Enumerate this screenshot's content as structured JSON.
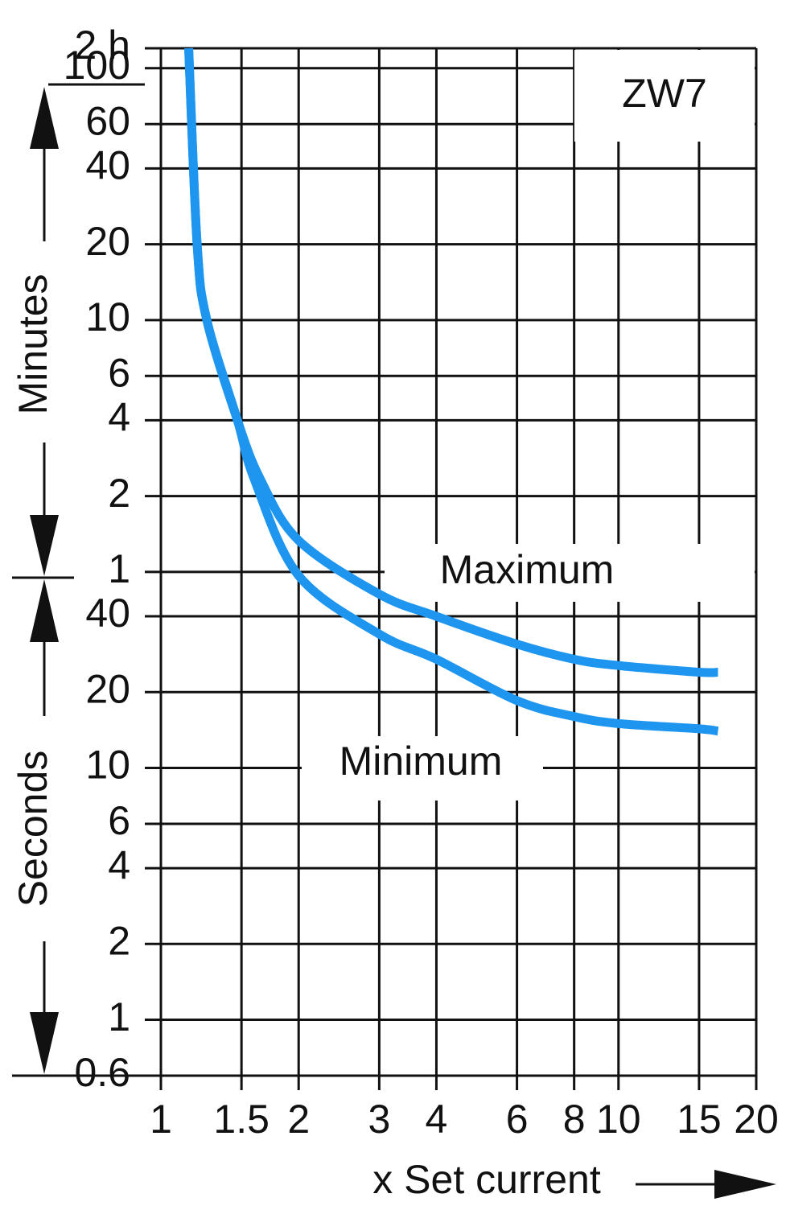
{
  "chart_data": {
    "type": "line",
    "annotation": "ZW7",
    "x_label": "x Set current",
    "y_label_upper": "Minutes",
    "y_label_lower": "Seconds",
    "log_x": true,
    "log_y": true,
    "grid": true,
    "xlim": [
      1,
      20
    ],
    "xticks": [
      1,
      1.5,
      2,
      3,
      4,
      6,
      8,
      10,
      15,
      20
    ],
    "ylim": [
      0.6,
      7200
    ],
    "yticks": [
      {
        "value": 7200,
        "label": "2 h"
      },
      {
        "value": 6000,
        "label": "100"
      },
      {
        "value": 3600,
        "label": "60"
      },
      {
        "value": 2400,
        "label": "40"
      },
      {
        "value": 1200,
        "label": "20"
      },
      {
        "value": 600,
        "label": "10"
      },
      {
        "value": 360,
        "label": "6"
      },
      {
        "value": 240,
        "label": "4"
      },
      {
        "value": 120,
        "label": "2"
      },
      {
        "value": 60,
        "label": "1"
      },
      40,
      20,
      10,
      6,
      4,
      2,
      1,
      0.6
    ],
    "series": [
      {
        "name": "Maximum",
        "color": "#1e96f0",
        "x": [
          1.15,
          1.2,
          1.26,
          1.47,
          1.65,
          2,
          3,
          4,
          6,
          8,
          10,
          15,
          16.5
        ],
        "values": [
          7200,
          1200,
          600,
          240,
          140,
          80,
          49,
          40,
          31,
          27,
          25.5,
          24,
          24
        ]
      },
      {
        "name": "Minimum",
        "color": "#1e96f0",
        "x": [
          1.15,
          1.2,
          1.26,
          1.47,
          1.6,
          2,
          3,
          4,
          6,
          8,
          10,
          15,
          16.5
        ],
        "values": [
          7200,
          1200,
          600,
          240,
          140,
          58,
          34,
          27,
          18.5,
          16,
          15,
          14.3,
          14
        ]
      }
    ]
  }
}
